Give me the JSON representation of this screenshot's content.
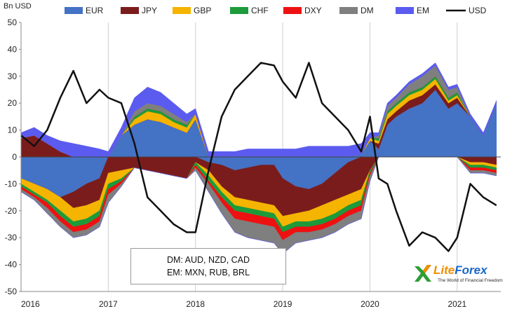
{
  "chart_data": {
    "type": "area",
    "ylabel": "Bn USD",
    "ylim": [
      -50,
      50
    ],
    "yticks": [
      50,
      40,
      30,
      20,
      10,
      0,
      -10,
      -20,
      -30,
      -40,
      -50
    ],
    "x_tick_labels": [
      "2016",
      "2017",
      "2018",
      "2019",
      "2020",
      "2021"
    ],
    "xlim": [
      2016.0,
      2021.5
    ],
    "grid": "vertical gridlines at year boundaries",
    "legend_position": "top",
    "stacking": "stacked areas (positive and negative stacked separately); USD shown as a line",
    "series_colors": {
      "EUR": "#4472c4",
      "JPY": "#7b1c1c",
      "GBP": "#f5b400",
      "CHF": "#1d9a3a",
      "DXY": "#ee1111",
      "DM": "#7f7f7f",
      "EM": "#5b5bf0",
      "USD": "#111111"
    },
    "x": [
      2016.0,
      2016.15,
      2016.3,
      2016.45,
      2016.6,
      2016.75,
      2016.9,
      2017.0,
      2017.15,
      2017.3,
      2017.45,
      2017.6,
      2017.75,
      2017.9,
      2018.0,
      2018.15,
      2018.3,
      2018.45,
      2018.6,
      2018.75,
      2018.9,
      2019.0,
      2019.15,
      2019.3,
      2019.45,
      2019.6,
      2019.75,
      2019.9,
      2020.0,
      2020.1,
      2020.2,
      2020.3,
      2020.45,
      2020.6,
      2020.75,
      2020.9,
      2021.0,
      2021.15,
      2021.3,
      2021.45
    ],
    "series": [
      {
        "name": "EUR",
        "values": [
          -8,
          -10,
          -12,
          -15,
          -13,
          -10,
          -8,
          0,
          8,
          12,
          14,
          13,
          11,
          9,
          14,
          -2,
          -3,
          -5,
          -4,
          -3,
          -3,
          -8,
          -11,
          -12,
          -10,
          -6,
          -2,
          1,
          6,
          3,
          12,
          15,
          18,
          20,
          25,
          18,
          20,
          15,
          8,
          20
        ]
      },
      {
        "name": "JPY",
        "values": [
          7,
          8,
          5,
          2,
          -6,
          -8,
          -8,
          -6,
          -5,
          -4,
          -5,
          -6,
          -7,
          -8,
          -2,
          -3,
          -8,
          -10,
          -12,
          -14,
          -15,
          -14,
          -10,
          -8,
          -8,
          -10,
          -12,
          -12,
          -5,
          2,
          2,
          2,
          3,
          3,
          2,
          2,
          2,
          -2,
          -2,
          -3
        ]
      },
      {
        "name": "GBP",
        "values": [
          -2,
          -3,
          -4,
          -5,
          -5,
          -5,
          -4,
          -4,
          -3,
          2,
          3,
          3,
          2,
          2,
          2,
          -2,
          -2,
          -3,
          -3,
          -3,
          -3,
          -4,
          -3,
          -4,
          -5,
          -5,
          -4,
          -4,
          1,
          1,
          2,
          2,
          2,
          2,
          2,
          1,
          1,
          -1,
          -1,
          -1
        ]
      },
      {
        "name": "CHF",
        "values": [
          -1,
          -1,
          -1,
          -2,
          -2,
          -2,
          -2,
          -2,
          -1,
          1,
          1,
          1,
          1,
          1,
          -1,
          -2,
          -2,
          -2,
          -2,
          -2,
          -2,
          -2,
          -2,
          -2,
          -2,
          -2,
          -2,
          -2,
          -1,
          1,
          1,
          1,
          1,
          1,
          1,
          1,
          1,
          -1,
          -1,
          -1
        ]
      },
      {
        "name": "DXY",
        "values": [
          -1,
          -1,
          -2,
          -2,
          -2,
          -2,
          -2,
          -2,
          -1,
          0,
          0,
          0,
          0,
          0,
          -1,
          -1,
          -2,
          -3,
          -3,
          -3,
          -3,
          -3,
          -2,
          -2,
          -2,
          -2,
          -2,
          -2,
          -1,
          0,
          0,
          0,
          0,
          0,
          0,
          0,
          0,
          -1,
          -1,
          -1
        ]
      },
      {
        "name": "DM",
        "values": [
          -1,
          -1,
          -2,
          -2,
          -2,
          -2,
          -2,
          -3,
          -1,
          2,
          2,
          2,
          2,
          1,
          -1,
          -3,
          -4,
          -5,
          -6,
          -6,
          -6,
          -5,
          -4,
          -3,
          -3,
          -3,
          -3,
          -3,
          -2,
          1,
          2,
          2,
          3,
          4,
          4,
          3,
          2,
          -1,
          -1,
          -1
        ]
      },
      {
        "name": "EM",
        "values": [
          2,
          3,
          3,
          4,
          5,
          4,
          3,
          2,
          3,
          5,
          6,
          5,
          4,
          3,
          2,
          2,
          2,
          2,
          3,
          3,
          3,
          3,
          3,
          4,
          4,
          4,
          4,
          4,
          2,
          1,
          1,
          1,
          1,
          1,
          1,
          1,
          1,
          1,
          1,
          1
        ]
      },
      {
        "name": "USD",
        "values": [
          8,
          4,
          10,
          22,
          32,
          20,
          25,
          22,
          20,
          5,
          -15,
          -20,
          -25,
          -28,
          -28,
          -5,
          15,
          25,
          30,
          35,
          34,
          28,
          22,
          35,
          20,
          15,
          10,
          2,
          15,
          -8,
          -10,
          -20,
          -33,
          -28,
          -30,
          -35,
          -30,
          -10,
          -15,
          -18
        ]
      }
    ]
  },
  "legend": [
    "EUR",
    "JPY",
    "GBP",
    "CHF",
    "DXY",
    "DM",
    "EM",
    "USD"
  ],
  "note": {
    "line1": "DM: AUD, NZD, CAD",
    "line2": "EM: MXN, RUB, BRL"
  },
  "logo": {
    "name_part1": "Lite",
    "name_part2": "Forex",
    "tagline": "The World of Financial Freedom"
  }
}
